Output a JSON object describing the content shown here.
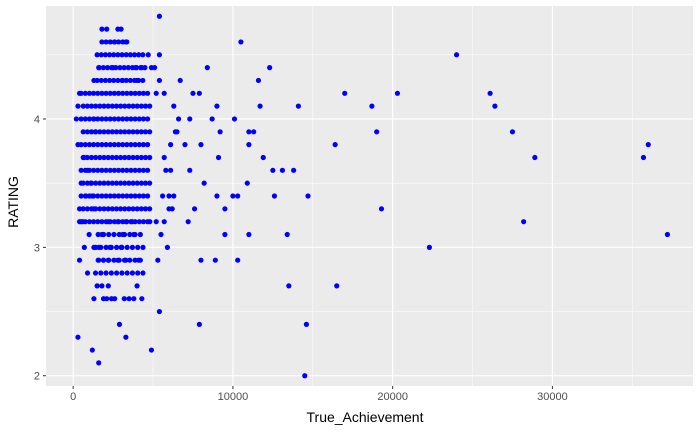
{
  "chart_data": {
    "type": "scatter",
    "xlabel": "True_Achievement",
    "ylabel": "RATING",
    "xlim": [
      -1700,
      38800
    ],
    "ylim": [
      1.92,
      4.88
    ],
    "x_ticks": [
      0,
      10000,
      20000,
      30000
    ],
    "x_tick_labels": [
      "0",
      "10000",
      "20000",
      "30000"
    ],
    "y_ticks": [
      2,
      3,
      4
    ],
    "y_tick_labels": [
      "2",
      "3",
      "4"
    ],
    "grid": true,
    "colors": {
      "panel": "#ebebeb",
      "grid": "#ffffff",
      "point": "#0000ff"
    },
    "points": [
      [
        5400,
        4.8
      ],
      [
        10500,
        4.6
      ],
      [
        24000,
        4.5
      ],
      [
        8400,
        4.4
      ],
      [
        12300,
        4.4
      ],
      [
        11600,
        4.3
      ],
      [
        6700,
        4.3
      ],
      [
        7500,
        4.2
      ],
      [
        7900,
        4.2
      ],
      [
        17000,
        4.2
      ],
      [
        20300,
        4.2
      ],
      [
        26100,
        4.2
      ],
      [
        9000,
        4.1
      ],
      [
        11700,
        4.1
      ],
      [
        14100,
        4.1
      ],
      [
        18700,
        4.1
      ],
      [
        26400,
        4.1
      ],
      [
        8700,
        4.0
      ],
      [
        7300,
        4.0
      ],
      [
        10100,
        4.0
      ],
      [
        11000,
        3.9
      ],
      [
        11300,
        3.9
      ],
      [
        19000,
        3.9
      ],
      [
        27500,
        3.9
      ],
      [
        9200,
        3.9
      ],
      [
        16400,
        3.8
      ],
      [
        36000,
        3.8
      ],
      [
        11000,
        3.8
      ],
      [
        7000,
        3.8
      ],
      [
        8000,
        3.8
      ],
      [
        9100,
        3.7
      ],
      [
        11900,
        3.7
      ],
      [
        28900,
        3.7
      ],
      [
        35700,
        3.7
      ],
      [
        12500,
        3.6
      ],
      [
        13100,
        3.6
      ],
      [
        13800,
        3.6
      ],
      [
        7300,
        3.6
      ],
      [
        10900,
        3.5
      ],
      [
        8200,
        3.5
      ],
      [
        9000,
        3.4
      ],
      [
        10000,
        3.4
      ],
      [
        10300,
        3.4
      ],
      [
        12600,
        3.4
      ],
      [
        14700,
        3.4
      ],
      [
        7600,
        3.3
      ],
      [
        9500,
        3.3
      ],
      [
        19300,
        3.3
      ],
      [
        7200,
        3.2
      ],
      [
        28200,
        3.2
      ],
      [
        11000,
        3.1
      ],
      [
        13400,
        3.1
      ],
      [
        37200,
        3.1
      ],
      [
        9500,
        3.1
      ],
      [
        5900,
        3.0
      ],
      [
        22300,
        3.0
      ],
      [
        5300,
        2.9
      ],
      [
        8000,
        2.9
      ],
      [
        8900,
        2.9
      ],
      [
        10300,
        2.9
      ],
      [
        13500,
        2.7
      ],
      [
        16500,
        2.7
      ],
      [
        5400,
        2.5
      ],
      [
        7900,
        2.4
      ],
      [
        14600,
        2.4
      ],
      [
        4900,
        2.2
      ],
      [
        14500,
        2.0
      ],
      [
        300,
        2.3
      ],
      [
        1200,
        2.2
      ],
      [
        1600,
        2.1
      ],
      [
        2900,
        2.4
      ],
      [
        3300,
        2.3
      ],
      [
        4000,
        2.7
      ],
      [
        3800,
        2.6
      ],
      [
        4300,
        2.6
      ],
      [
        3500,
        2.6
      ],
      [
        3200,
        2.6
      ],
      [
        2600,
        2.6
      ],
      [
        2400,
        2.6
      ],
      [
        2100,
        2.6
      ],
      [
        1900,
        2.6
      ],
      [
        1500,
        2.7
      ],
      [
        1800,
        2.7
      ],
      [
        2200,
        2.7
      ],
      [
        1300,
        2.6
      ],
      [
        900,
        2.8
      ],
      [
        1600,
        2.9
      ],
      [
        1900,
        2.9
      ],
      [
        2200,
        2.9
      ],
      [
        2800,
        2.9
      ],
      [
        3300,
        2.9
      ],
      [
        4100,
        2.9
      ],
      [
        400,
        2.9
      ],
      [
        700,
        3.0
      ],
      [
        1300,
        3.0
      ],
      [
        1600,
        3.0
      ],
      [
        2300,
        3.0
      ],
      [
        3000,
        3.0
      ],
      [
        1000,
        3.1
      ],
      [
        1900,
        3.1
      ],
      [
        1800,
        3.1
      ],
      [
        3100,
        3.1
      ],
      [
        3800,
        3.1
      ],
      [
        400,
        3.2
      ],
      [
        600,
        3.2
      ],
      [
        2200,
        3.2
      ],
      [
        2800,
        3.2
      ],
      [
        3300,
        3.2
      ],
      [
        3700,
        3.2
      ],
      [
        5500,
        3.1
      ],
      [
        4800,
        3.2
      ],
      [
        5200,
        3.2
      ],
      [
        5700,
        3.2
      ],
      [
        6000,
        3.3
      ],
      [
        6200,
        3.3
      ],
      [
        5600,
        3.4
      ],
      [
        6000,
        3.4
      ],
      [
        6300,
        3.4
      ],
      [
        5800,
        3.6
      ],
      [
        6100,
        3.6
      ],
      [
        5700,
        3.7
      ],
      [
        6100,
        3.8
      ],
      [
        6400,
        3.9
      ],
      [
        6500,
        3.9
      ],
      [
        6600,
        4.0
      ],
      [
        6300,
        4.1
      ],
      [
        5700,
        4.2
      ],
      [
        5200,
        4.2
      ],
      [
        5400,
        4.3
      ],
      [
        5100,
        4.4
      ],
      [
        4900,
        4.4
      ],
      [
        5400,
        4.5
      ],
      [
        4700,
        4.5
      ],
      [
        200,
        4.0
      ],
      [
        300,
        4.1
      ],
      [
        400,
        4.2
      ],
      [
        300,
        3.8
      ],
      [
        700,
        3.7
      ],
      [
        900,
        3.6
      ],
      [
        1100,
        3.5
      ],
      [
        1200,
        3.4
      ],
      [
        1300,
        3.3
      ],
      [
        500,
        3.5
      ],
      [
        800,
        3.4
      ],
      [
        400,
        3.3
      ],
      [
        1400,
        3.9
      ],
      [
        1300,
        4.0
      ],
      [
        1300,
        4.3
      ],
      [
        1600,
        4.4
      ],
      [
        1800,
        4.7
      ],
      [
        2100,
        4.7
      ],
      [
        2800,
        4.7
      ],
      [
        3000,
        4.7
      ],
      [
        2600,
        4.6
      ],
      [
        3300,
        4.6
      ],
      [
        2500,
        4.4
      ],
      [
        3900,
        4.4
      ],
      [
        4300,
        4.4
      ],
      [
        3100,
        4.3
      ],
      [
        4000,
        4.3
      ]
    ],
    "dense_regions": [
      {
        "x_range": [
          500,
          4800
        ],
        "y_values": [
          3.2,
          3.3,
          3.4,
          3.5,
          3.6,
          3.7,
          3.8,
          3.9,
          4.0,
          4.1,
          4.2
        ],
        "x_step": 260
      },
      {
        "x_range": [
          1500,
          4500
        ],
        "y_values": [
          4.3,
          4.4,
          4.5
        ],
        "x_step": 260
      },
      {
        "x_range": [
          1800,
          3600
        ],
        "y_values": [
          4.6
        ],
        "x_step": 260
      },
      {
        "x_range": [
          1400,
          4400
        ],
        "y_values": [
          2.8,
          2.9,
          3.0,
          3.1
        ],
        "x_step": 330
      }
    ]
  }
}
